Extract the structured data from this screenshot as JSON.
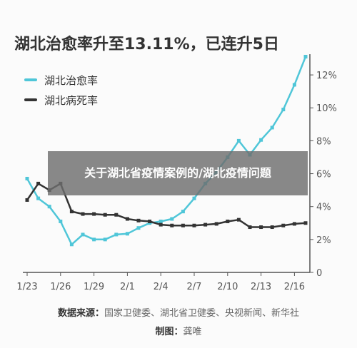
{
  "page": {
    "title": "湖北治愈率升至13.11%，已连升5日",
    "overlay_title": "关于湖北省疫情案例的/湖北疫情问题",
    "source_label": "数据来源：",
    "source_text": "国家卫健委、湖北省卫健委、央视新闻、新华社",
    "credit_label": "制图：",
    "credit_text": "龚唯"
  },
  "colors": {
    "cure": "#4fc6d8",
    "death": "#333333",
    "axis": "#555555",
    "tick_text": "#555555"
  },
  "chart_data": {
    "type": "line",
    "title": "湖北治愈率升至13.11%，已连升5日",
    "x": [
      "1/23",
      "1/24",
      "1/25",
      "1/26",
      "1/27",
      "1/28",
      "1/29",
      "1/30",
      "1/31",
      "2/1",
      "2/2",
      "2/3",
      "2/4",
      "2/5",
      "2/6",
      "2/7",
      "2/8",
      "2/9",
      "2/10",
      "2/11",
      "2/12",
      "2/13",
      "2/14",
      "2/15",
      "2/16",
      "2/17"
    ],
    "x_tick_labels": [
      "1/23",
      "1/26",
      "1/29",
      "2/1",
      "2/4",
      "2/7",
      "2/10",
      "2/13",
      "2/16"
    ],
    "y_tick_labels": [
      "0",
      "2%",
      "4%",
      "6%",
      "8%",
      "10%",
      "12%"
    ],
    "ylim": [
      0,
      13
    ],
    "y_axis_position": "right",
    "grid": false,
    "legend_position": "top-left",
    "series": [
      {
        "name": "湖北治愈率",
        "color": "#4fc6d8",
        "values": [
          5.7,
          4.5,
          4.0,
          3.1,
          1.7,
          2.3,
          2.0,
          2.0,
          2.3,
          2.35,
          2.7,
          3.0,
          3.1,
          3.25,
          3.7,
          4.5,
          5.4,
          6.1,
          7.0,
          8.0,
          7.15,
          8.05,
          8.8,
          9.9,
          11.4,
          13.11
        ]
      },
      {
        "name": "湖北病死率",
        "color": "#333333",
        "values": [
          4.4,
          5.4,
          5.0,
          5.4,
          3.7,
          3.55,
          3.55,
          3.5,
          3.5,
          3.25,
          3.15,
          3.1,
          2.9,
          2.85,
          2.85,
          2.85,
          2.9,
          2.95,
          3.1,
          3.2,
          2.75,
          2.75,
          2.75,
          2.85,
          2.95,
          3.0
        ]
      }
    ]
  }
}
